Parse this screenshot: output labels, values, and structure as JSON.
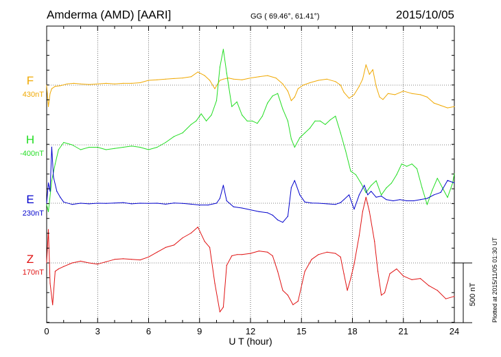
{
  "header": {
    "station": "Amderma (AMD)  [AARI]",
    "coords": "GG ( 69.46°,  61.41°)",
    "date": "2015/10/05"
  },
  "side_note": "Plotted at 2015/11/05 01:30 UT",
  "scale_label": "500 nT",
  "chart_data": {
    "type": "line",
    "xlabel": "U T (hour)",
    "ylabel": "",
    "xlim": [
      0,
      24
    ],
    "x_ticks": [
      "0",
      "3",
      "6",
      "9",
      "12",
      "15",
      "18",
      "21",
      "24"
    ],
    "grid": true,
    "colors": {
      "F": "#f0a800",
      "H": "#22dd22",
      "E": "#0000cc",
      "Z": "#e01010"
    },
    "series": [
      {
        "name": "F",
        "baseline_label": "430nT",
        "x": [
          0,
          0.1,
          0.2,
          0.3,
          0.5,
          0.8,
          1.2,
          1.6,
          2,
          2.5,
          3,
          3.5,
          4,
          4.5,
          5,
          5.5,
          6,
          6.5,
          7,
          7.5,
          8,
          8.5,
          8.9,
          9.3,
          9.6,
          9.9,
          10.2,
          10.4,
          10.7,
          11,
          11.5,
          12,
          12.5,
          13,
          13.5,
          13.9,
          14.2,
          14.4,
          14.6,
          14.8,
          15.1,
          15.5,
          16,
          16.5,
          17,
          17.3,
          17.5,
          17.8,
          18.1,
          18.4,
          18.6,
          18.8,
          19.0,
          19.2,
          19.4,
          19.6,
          19.8,
          20.1,
          20.5,
          21,
          21.5,
          22,
          22.4,
          22.8,
          23.2,
          23.6,
          24
        ],
        "values": [
          430,
          250,
          360,
          400,
          420,
          425,
          440,
          445,
          440,
          435,
          440,
          445,
          440,
          445,
          445,
          450,
          470,
          475,
          480,
          485,
          490,
          500,
          540,
          510,
          470,
          400,
          470,
          480,
          490,
          480,
          475,
          490,
          500,
          510,
          490,
          440,
          380,
          300,
          330,
          400,
          430,
          450,
          470,
          480,
          460,
          430,
          370,
          320,
          350,
          420,
          480,
          600,
          520,
          560,
          420,
          330,
          310,
          360,
          350,
          380,
          360,
          350,
          330,
          280,
          260,
          240,
          250
        ]
      },
      {
        "name": "H",
        "baseline_label": "-400nT",
        "x": [
          0,
          0.1,
          0.3,
          0.5,
          0.7,
          1.0,
          1.5,
          2,
          2.5,
          3,
          3.5,
          4,
          4.5,
          5,
          5.5,
          6,
          6.5,
          7,
          7.5,
          8,
          8.5,
          8.8,
          9.1,
          9.4,
          9.7,
          10.0,
          10.2,
          10.4,
          10.6,
          10.9,
          11.2,
          11.5,
          11.8,
          12.1,
          12.4,
          12.7,
          13.0,
          13.3,
          13.6,
          13.9,
          14.2,
          14.4,
          14.6,
          14.9,
          15.2,
          15.5,
          15.8,
          16.1,
          16.4,
          16.7,
          17,
          17.3,
          17.6,
          17.9,
          18.2,
          18.5,
          18.8,
          19.1,
          19.4,
          19.7,
          20,
          20.3,
          20.6,
          20.9,
          21.2,
          21.5,
          21.8,
          22.1,
          22.4,
          22.7,
          23,
          23.3,
          23.6,
          23.9,
          24
        ],
        "values": [
          -900,
          -960,
          -700,
          -560,
          -440,
          -380,
          -400,
          -440,
          -420,
          -420,
          -440,
          -430,
          -420,
          -410,
          -420,
          -440,
          -420,
          -380,
          -330,
          -300,
          -230,
          -200,
          -140,
          -200,
          -150,
          -30,
          250,
          400,
          200,
          -80,
          -40,
          -150,
          -200,
          -200,
          -220,
          -160,
          -50,
          10,
          30,
          -100,
          -200,
          -350,
          -420,
          -340,
          -300,
          -260,
          -200,
          -200,
          -230,
          -190,
          -160,
          -300,
          -450,
          -620,
          -650,
          -720,
          -800,
          -740,
          -700,
          -820,
          -760,
          -720,
          -650,
          -560,
          -580,
          -560,
          -600,
          -760,
          -900,
          -780,
          -680,
          -760,
          -840,
          -720,
          -640
        ]
      },
      {
        "name": "E",
        "baseline_label": "230nT",
        "x": [
          0,
          0.1,
          0.2,
          0.3,
          0.4,
          0.6,
          0.8,
          1.0,
          1.5,
          2,
          2.5,
          3,
          3.5,
          4,
          4.5,
          5,
          5.5,
          6,
          6.5,
          7,
          7.5,
          8,
          8.5,
          9,
          9.5,
          10,
          10.2,
          10.4,
          10.6,
          11,
          11.5,
          12,
          12.5,
          13,
          13.3,
          13.6,
          13.9,
          14.2,
          14.4,
          14.6,
          14.9,
          15.2,
          15.6,
          16,
          16.5,
          17,
          17.3,
          17.5,
          17.8,
          18.1,
          18.4,
          18.7,
          18.9,
          19.1,
          19.4,
          19.7,
          20,
          20.4,
          20.8,
          21.2,
          21.6,
          22,
          22.4,
          22.8,
          23.2,
          23.6,
          24
        ],
        "values": [
          230,
          400,
          330,
          700,
          450,
          330,
          280,
          240,
          220,
          230,
          225,
          230,
          228,
          232,
          235,
          225,
          230,
          228,
          230,
          222,
          232,
          228,
          222,
          215,
          215,
          230,
          270,
          380,
          250,
          200,
          190,
          175,
          160,
          150,
          130,
          90,
          70,
          120,
          360,
          420,
          300,
          240,
          232,
          230,
          225,
          220,
          235,
          260,
          300,
          180,
          300,
          380,
          300,
          330,
          280,
          290,
          260,
          250,
          260,
          250,
          250,
          260,
          270,
          300,
          320,
          420,
          400
        ]
      },
      {
        "name": "Z",
        "baseline_label": "170nT",
        "x": [
          0,
          0.1,
          0.2,
          0.35,
          0.5,
          0.7,
          1.0,
          1.5,
          2,
          2.5,
          3,
          3.5,
          4,
          4.5,
          5,
          5.5,
          6,
          6.5,
          7,
          7.5,
          8,
          8.5,
          8.9,
          9.3,
          9.6,
          9.9,
          10.2,
          10.4,
          10.6,
          10.9,
          11.2,
          11.5,
          12,
          12.5,
          13,
          13.3,
          13.6,
          13.9,
          14.2,
          14.5,
          14.8,
          15.2,
          15.6,
          16,
          16.5,
          17,
          17.3,
          17.5,
          17.7,
          17.9,
          18.1,
          18.4,
          18.6,
          18.8,
          19.0,
          19.3,
          19.5,
          19.7,
          19.9,
          20.2,
          20.6,
          21,
          21.5,
          22,
          22.5,
          23,
          23.5,
          24
        ],
        "values": [
          170,
          450,
          0,
          -180,
          100,
          120,
          140,
          170,
          185,
          170,
          160,
          180,
          200,
          205,
          200,
          195,
          220,
          260,
          300,
          320,
          380,
          420,
          470,
          350,
          300,
          0,
          -240,
          -200,
          150,
          230,
          240,
          240,
          250,
          270,
          260,
          230,
          100,
          -60,
          -100,
          -180,
          -150,
          100,
          200,
          240,
          260,
          250,
          220,
          80,
          -60,
          40,
          160,
          400,
          600,
          720,
          600,
          350,
          100,
          -100,
          -80,
          80,
          120,
          60,
          30,
          40,
          -20,
          -60,
          -130,
          -110
        ]
      }
    ]
  }
}
